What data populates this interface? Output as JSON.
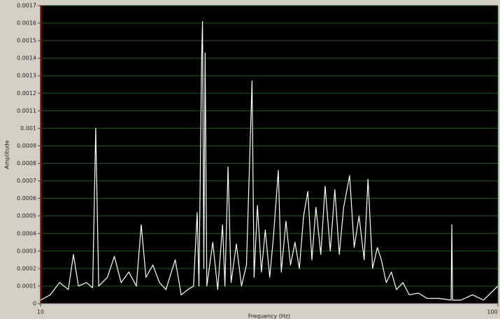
{
  "chart_data": {
    "type": "line",
    "x_label": "Frequency (Hz)",
    "y_label": "Amplitude",
    "xscale": "log",
    "grid": true,
    "background": "#000000",
    "grid_color": "#1f5a1f",
    "xlim": [
      10,
      100
    ],
    "xticks": [
      10,
      100
    ],
    "ylim": [
      0,
      0.0017
    ],
    "yticks": [
      0,
      0.0001,
      0.0002,
      0.0003,
      0.0004,
      0.0005,
      0.0006,
      0.0007,
      0.0008,
      0.0009,
      0.001,
      0.0011,
      0.0012,
      0.0013,
      0.0014,
      0.0015,
      0.0016,
      0.0017
    ],
    "series": [
      {
        "color": "#ffffff",
        "x": [
          10,
          10.5,
          11,
          11.5,
          11.8,
          12.1,
          12.6,
          13.0,
          13.2,
          13.4,
          14,
          14.5,
          15,
          15.6,
          16.2,
          16.6,
          17,
          17.6,
          18.2,
          18.8,
          19.7,
          20.3,
          21,
          21.6,
          22.0,
          22.2,
          22.5,
          22.6,
          22.75,
          22.9,
          23.1,
          23.8,
          24.4,
          25.0,
          25.3,
          25.7,
          26.1,
          26.8,
          27.5,
          28.2,
          29.0,
          29.3,
          29.8,
          30.4,
          31,
          31.7,
          32.3,
          33.1,
          33.6,
          34.4,
          35.2,
          36,
          36.8,
          37.6,
          38.4,
          39.2,
          40,
          41,
          41.9,
          43,
          44,
          45,
          46,
          47.4,
          48.5,
          49.7,
          51,
          52,
          53.2,
          54.5,
          55.6,
          57,
          58.5,
          60,
          62,
          64,
          67,
          70,
          74,
          79,
          79.3,
          79.6,
          83,
          88,
          93,
          100
        ],
        "values": [
          2e-05,
          5e-05,
          0.00012,
          8e-05,
          0.00028,
          0.0001,
          0.00012,
          9e-05,
          0.001,
          0.0001,
          0.00015,
          0.00027,
          0.00012,
          0.00018,
          0.0001,
          0.00045,
          0.00015,
          0.00022,
          0.00012,
          8e-05,
          0.00025,
          5e-05,
          8e-05,
          0.0001,
          0.00052,
          0.0001,
          0.0014,
          0.00161,
          0.0002,
          0.00143,
          0.0001,
          0.00035,
          8e-05,
          0.00045,
          0.0001,
          0.00078,
          0.00012,
          0.00034,
          0.0001,
          0.00022,
          0.00127,
          0.00015,
          0.00056,
          0.00018,
          0.00042,
          0.00015,
          0.00038,
          0.00076,
          0.00018,
          0.00047,
          0.00022,
          0.00035,
          0.0002,
          0.0005,
          0.00064,
          0.00025,
          0.00055,
          0.00028,
          0.00067,
          0.0003,
          0.00065,
          0.00028,
          0.00055,
          0.00073,
          0.00032,
          0.0005,
          0.00025,
          0.00071,
          0.0002,
          0.00032,
          0.00025,
          0.00012,
          0.00018,
          8e-05,
          0.00012,
          5e-05,
          6e-05,
          3e-05,
          3e-05,
          2e-05,
          0.00045,
          2e-05,
          2e-05,
          5e-05,
          2e-05,
          0.0001
        ]
      }
    ]
  }
}
